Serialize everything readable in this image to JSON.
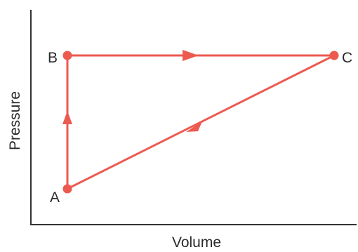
{
  "axes": {
    "x_label": "Volume",
    "y_label": "Pressure"
  },
  "points": {
    "A": {
      "label": "A"
    },
    "B": {
      "label": "B"
    },
    "C": {
      "label": "C"
    }
  },
  "colors": {
    "path": "#ec5a4f",
    "axis": "#333333",
    "text": "#2a2a2a"
  }
}
